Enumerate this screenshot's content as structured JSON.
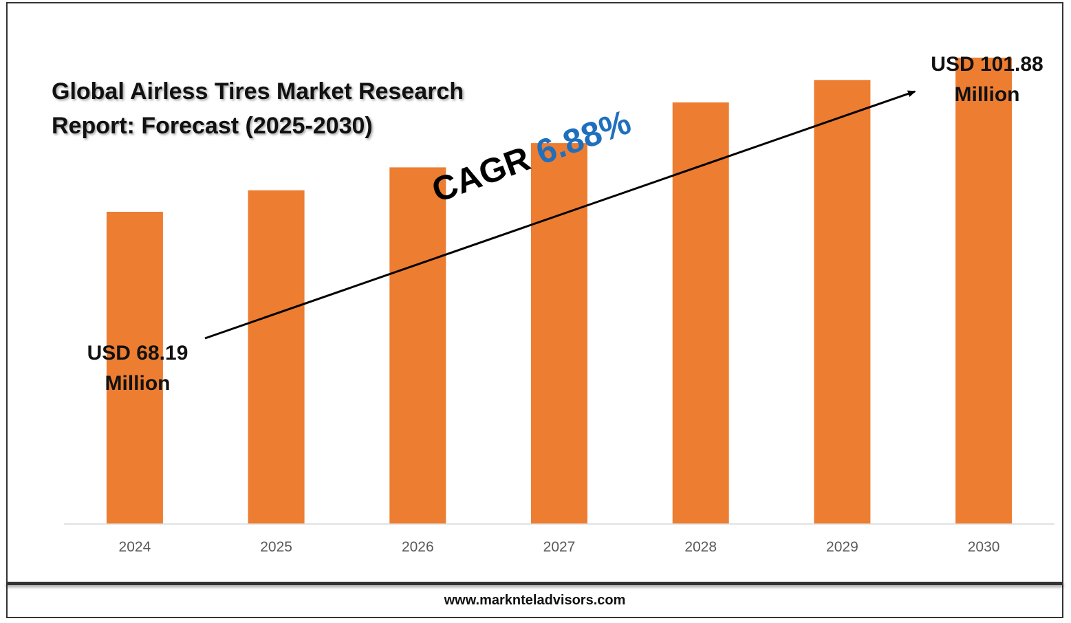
{
  "title_line1": "Global Airless Tires Market Research",
  "title_line2": "Report: Forecast (2025-2030)",
  "cagr_label": "CAGR",
  "cagr_value": "6.88%",
  "start_callout_line1": "USD 68.19",
  "start_callout_line2": "Million",
  "end_callout_line1": "USD 101.88",
  "end_callout_line2": "Million",
  "footer": "www.marknteladvisors.com",
  "colors": {
    "bar": "#ed7d31",
    "axis": "#d9d9d9",
    "tick_label": "#595959",
    "cagr_value": "#1f6fbf"
  },
  "chart_data": {
    "type": "bar",
    "categories": [
      "2024",
      "2025",
      "2026",
      "2027",
      "2028",
      "2029",
      "2030"
    ],
    "values": [
      68.19,
      72.9,
      77.9,
      83.2,
      92.1,
      97.0,
      101.88
    ],
    "unit": "USD Million",
    "ylim": [
      0,
      105
    ],
    "grid": false,
    "legend": "none"
  }
}
